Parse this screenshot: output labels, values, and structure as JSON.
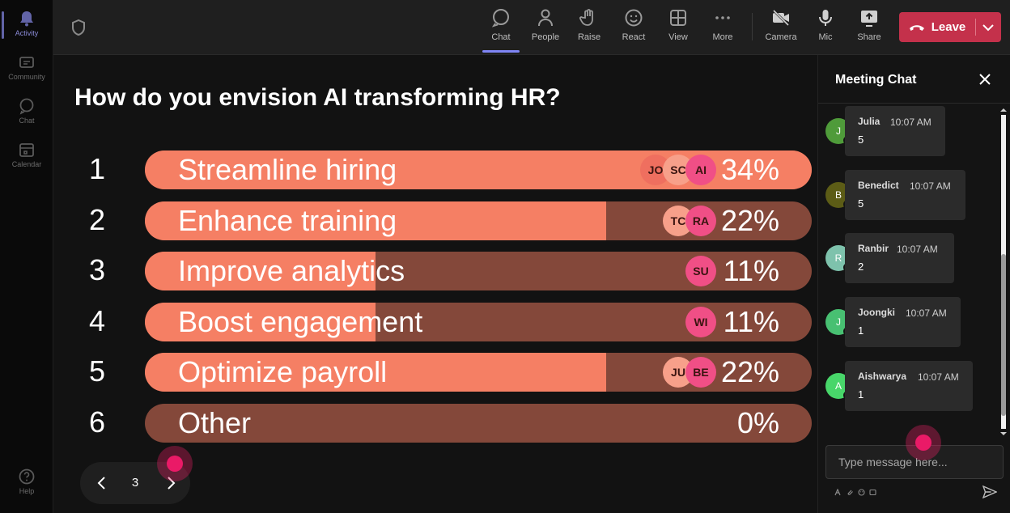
{
  "rail": {
    "items": [
      {
        "label": "Activity",
        "icon": "bell-icon"
      },
      {
        "label": "Community",
        "icon": "community-icon"
      },
      {
        "label": "Chat",
        "icon": "chat-icon"
      },
      {
        "label": "Calendar",
        "icon": "calendar-icon"
      }
    ],
    "help": "Help"
  },
  "toolbar": {
    "chat": "Chat",
    "people": "People",
    "raise": "Raise",
    "react": "React",
    "view": "View",
    "more": "More",
    "camera": "Camera",
    "mic": "Mic",
    "share": "Share",
    "leave": "Leave"
  },
  "poll": {
    "question": "How do you envision AI transforming HR?",
    "options": [
      {
        "num": "1",
        "label": "Streamline hiring",
        "pct": "34%",
        "fill": 1.0,
        "avatars": [
          "JO",
          "SC",
          "AI"
        ]
      },
      {
        "num": "2",
        "label": "Enhance training",
        "pct": "22%",
        "fill": 0.692,
        "avatars": [
          "TC",
          "RA"
        ]
      },
      {
        "num": "3",
        "label": "Improve analytics",
        "pct": "11%",
        "fill": 0.346,
        "avatars": [
          "SU"
        ]
      },
      {
        "num": "4",
        "label": "Boost engagement",
        "pct": "11%",
        "fill": 0.346,
        "avatars": [
          "WI"
        ]
      },
      {
        "num": "5",
        "label": "Optimize payroll",
        "pct": "22%",
        "fill": 0.692,
        "avatars": [
          "JU",
          "BE"
        ]
      },
      {
        "num": "6",
        "label": "Other",
        "pct": "0%",
        "fill": 0.0,
        "avatars": []
      }
    ],
    "page": "3"
  },
  "chat": {
    "title": "Meeting Chat",
    "messages": [
      {
        "initial": "J",
        "name": "Julia",
        "time": "10:07 AM",
        "text": "5",
        "color": "#4f9b3a"
      },
      {
        "initial": "B",
        "name": "Benedict",
        "time": "10:07 AM",
        "text": "5",
        "color": "#5c5c16"
      },
      {
        "initial": "R",
        "name": "Ranbir",
        "time": "10:07 AM",
        "text": "2",
        "color": "#7ec2ac"
      },
      {
        "initial": "J",
        "name": "Joongki",
        "time": "10:07 AM",
        "text": "1",
        "color": "#48c072"
      },
      {
        "initial": "A",
        "name": "Aishwarya",
        "time": "10:07 AM",
        "text": "1",
        "color": "#48d66a"
      }
    ],
    "input_placeholder": "Type message here..."
  },
  "colors": {
    "bar_fill": "#f57f64",
    "bar_track": "#84483a",
    "leave": "#c4314b",
    "accent": "#7f85f5"
  }
}
